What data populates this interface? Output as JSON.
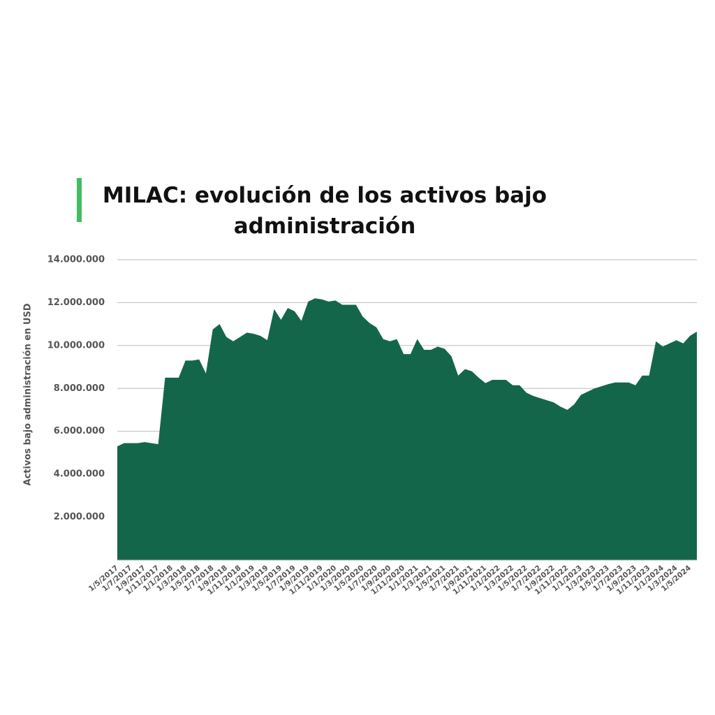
{
  "chart_data": {
    "type": "area",
    "title": "MILAC: evolución de los activos bajo administración",
    "y_label": "Activos bajo administración en USD",
    "color": "#14664a",
    "grid": true,
    "ylim": [
      0,
      14000000
    ],
    "yticks": [
      {
        "value": 2000000,
        "label": "2.000.000"
      },
      {
        "value": 4000000,
        "label": "4.000.000"
      },
      {
        "value": 6000000,
        "label": "6.000.000"
      },
      {
        "value": 8000000,
        "label": "8.000.000"
      },
      {
        "value": 10000000,
        "label": "10.000.000"
      },
      {
        "value": 12000000,
        "label": "12.000.000"
      },
      {
        "value": 14000000,
        "label": "14.000.000"
      }
    ],
    "categories": [
      "1/5/2017",
      null,
      "1/7/2017",
      null,
      "1/9/2017",
      null,
      "1/11/2017",
      null,
      "1/1/2018",
      null,
      "1/3/2018",
      null,
      "1/5/2018",
      null,
      "1/7/2018",
      null,
      "1/9/2018",
      null,
      "1/11/2018",
      null,
      "1/1/2019",
      null,
      "1/3/2019",
      null,
      "1/5/2019",
      null,
      "1/7/2019",
      null,
      "1/9/2019",
      null,
      "1/11/2019",
      null,
      "1/1/2020",
      null,
      "1/3/2020",
      null,
      "1/5/2020",
      null,
      "1/7/2020",
      null,
      "1/9/2020",
      null,
      "1/11/2020",
      null,
      "1/1/2021",
      null,
      "1/3/2021",
      null,
      "1/5/2021",
      null,
      "1/7/2021",
      null,
      "1/9/2021",
      null,
      "1/11/2021",
      null,
      "1/1/2022",
      null,
      "1/3/2022",
      null,
      "1/5/2022",
      null,
      "1/7/2022",
      null,
      "1/9/2022",
      null,
      "1/11/2022",
      null,
      "1/1/2023",
      null,
      "1/3/2023",
      null,
      "1/5/2023",
      null,
      "1/7/2023",
      null,
      "1/9/2023",
      null,
      "1/11/2023",
      null,
      "1/1/2024",
      null,
      "1/3/2024",
      null,
      "1/5/2024",
      null
    ],
    "values": [
      5300000,
      5450000,
      5450000,
      5450000,
      5500000,
      5450000,
      5400000,
      8500000,
      8500000,
      8500000,
      9300000,
      9300000,
      9350000,
      8700000,
      10750000,
      11000000,
      10400000,
      10200000,
      10400000,
      10600000,
      10550000,
      10450000,
      10250000,
      11700000,
      11200000,
      11750000,
      11600000,
      11150000,
      12050000,
      12200000,
      12150000,
      12050000,
      12100000,
      11900000,
      11900000,
      11900000,
      11350000,
      11050000,
      10850000,
      10300000,
      10200000,
      10300000,
      9600000,
      9600000,
      10300000,
      9800000,
      9800000,
      9950000,
      9850000,
      9500000,
      8600000,
      8900000,
      8800000,
      8500000,
      8250000,
      8400000,
      8400000,
      8400000,
      8150000,
      8150000,
      7800000,
      7650000,
      7550000,
      7450000,
      7350000,
      7150000,
      7000000,
      7250000,
      7700000,
      7850000,
      8000000,
      8100000,
      8200000,
      8280000,
      8280000,
      8280000,
      8150000,
      8600000,
      8600000,
      10200000,
      9950000,
      10100000,
      10250000,
      10100000,
      10450000,
      10650000
    ]
  }
}
